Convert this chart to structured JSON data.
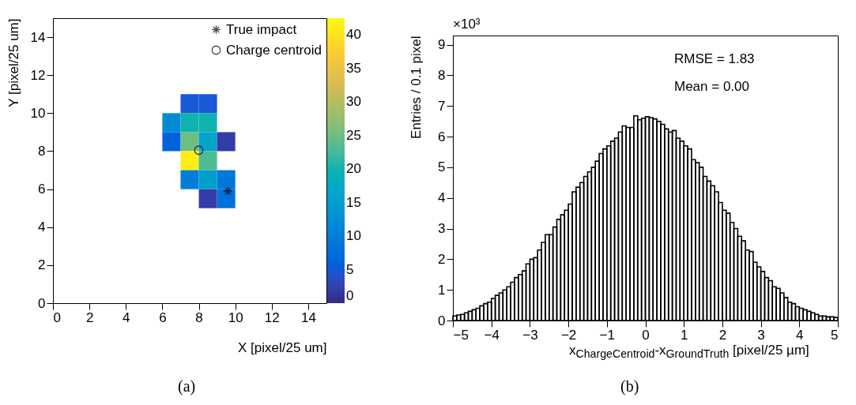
{
  "chart_data": [
    {
      "type": "heatmap",
      "xlabel": "X [pixel/25 um]",
      "ylabel": "Y [pixel/25 um]",
      "annotations": [
        "(a)"
      ],
      "x": [
        6.5,
        7.5,
        8.5,
        9.5
      ],
      "y": [
        10.5,
        9.5,
        8.5,
        7.5,
        6.5,
        5.5
      ],
      "cells": [
        [
          null,
          5,
          5,
          null
        ],
        [
          12,
          20,
          20,
          null
        ],
        [
          6,
          25,
          16,
          2
        ],
        [
          null,
          41,
          23,
          null
        ],
        [
          null,
          10,
          15,
          9
        ],
        [
          null,
          null,
          2,
          8
        ]
      ],
      "clim": [
        0,
        42.5
      ],
      "cticks": [
        0,
        5,
        10,
        15,
        20,
        25,
        30,
        35,
        40
      ],
      "xlim": [
        0,
        15
      ],
      "ylim": [
        0,
        15
      ],
      "xticks": [
        0,
        2,
        4,
        6,
        8,
        10,
        12,
        14
      ],
      "yticks": [
        0,
        2,
        4,
        6,
        8,
        10,
        12,
        14
      ],
      "series": [
        {
          "name": "True impact",
          "type": "scatter",
          "marker": "cross",
          "color": "#000000",
          "x": [
            9.6
          ],
          "values": [
            5.9
          ]
        },
        {
          "name": "Charge centroid",
          "type": "scatter",
          "marker": "circle",
          "color": "#000000",
          "x": [
            8.0
          ],
          "values": [
            8.05
          ]
        }
      ],
      "legend": "top right",
      "grid": false
    },
    {
      "type": "histogram",
      "xlabel": "x$_{ChargeCentroid}$-x$_{GroundTruth}$ [pixel/25 µm]",
      "ylabel": "Entries / 0.1 pixel",
      "annotations": [
        "×10³",
        "RMSE = 1.83",
        "Mean = 0.00",
        "(b)"
      ],
      "color": "#000000",
      "bins": [
        -5,
        -4.9,
        -4.8,
        -4.7,
        -4.6,
        -4.5,
        -4.4,
        -4.3,
        -4.2,
        -4.1,
        -4,
        -3.9,
        -3.8,
        -3.7,
        -3.6,
        -3.5,
        -3.4,
        -3.3,
        -3.2,
        -3.1,
        -3,
        -2.9,
        -2.8,
        -2.7,
        -2.6,
        -2.5,
        -2.4,
        -2.3,
        -2.2,
        -2.1,
        -2,
        -1.9,
        -1.8,
        -1.7,
        -1.6,
        -1.5,
        -1.4,
        -1.3,
        -1.2,
        -1.1,
        -1,
        -0.9,
        -0.8,
        -0.7,
        -0.6,
        -0.5,
        -0.4,
        -0.3,
        -0.2,
        -0.1,
        0,
        0.1,
        0.2,
        0.3,
        0.4,
        0.5,
        0.6,
        0.7,
        0.8,
        0.9,
        1,
        1.1,
        1.2,
        1.3,
        1.4,
        1.5,
        1.6,
        1.7,
        1.8,
        1.9,
        2,
        2.1,
        2.2,
        2.3,
        2.4,
        2.5,
        2.6,
        2.7,
        2.8,
        2.9,
        3,
        3.1,
        3.2,
        3.3,
        3.4,
        3.5,
        3.6,
        3.7,
        3.8,
        3.9,
        4,
        4.1,
        4.2,
        4.3,
        4.4,
        4.5,
        4.6,
        4.7,
        4.8,
        4.9,
        5
      ],
      "values": [
        0.15,
        0.18,
        0.2,
        0.25,
        0.3,
        0.35,
        0.4,
        0.48,
        0.55,
        0.6,
        0.72,
        0.82,
        0.9,
        1.0,
        1.1,
        1.25,
        1.4,
        1.5,
        1.62,
        1.85,
        2.0,
        2.05,
        2.3,
        2.55,
        2.8,
        2.8,
        3.05,
        3.3,
        3.45,
        3.6,
        3.8,
        4.2,
        4.35,
        4.5,
        4.7,
        4.85,
        5.0,
        5.2,
        5.45,
        5.6,
        5.7,
        5.85,
        5.95,
        6.15,
        6.35,
        6.3,
        6.3,
        6.68,
        6.55,
        6.6,
        6.65,
        6.62,
        6.58,
        6.5,
        6.4,
        6.25,
        6.15,
        6.2,
        5.95,
        5.85,
        5.7,
        5.6,
        5.25,
        5.15,
        5.0,
        4.7,
        4.55,
        4.4,
        4.2,
        3.85,
        3.6,
        3.5,
        3.2,
        3.0,
        2.75,
        2.6,
        2.3,
        2.25,
        1.9,
        1.75,
        1.6,
        1.4,
        1.3,
        1.1,
        1.05,
        0.9,
        0.75,
        0.6,
        0.55,
        0.45,
        0.4,
        0.35,
        0.3,
        0.25,
        0.2,
        0.15,
        0.15,
        0.12,
        0.12,
        0.1
      ],
      "xlim": [
        -5,
        5
      ],
      "ylim": [
        0,
        9.3
      ],
      "xticks": [
        -5,
        -4,
        -3,
        -2,
        -1,
        0,
        1,
        2,
        3,
        4,
        5
      ],
      "yticks": [
        0,
        1,
        2,
        3,
        4,
        5,
        6,
        7,
        8,
        9
      ],
      "grid": false
    }
  ]
}
